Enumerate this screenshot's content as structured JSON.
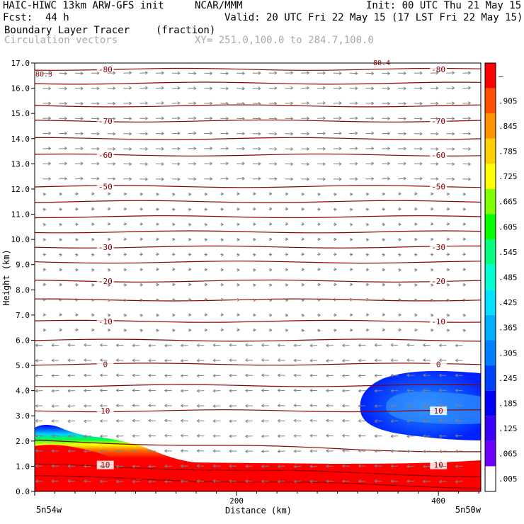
{
  "header": {
    "title_left": "HAIC-HIWC 13km ARW-GFS init",
    "title_org": "NCAR/MMM",
    "init": "Init: 00 UTC Thu 21 May 15",
    "fcst_label": "Fcst:",
    "fcst_value": "44 h",
    "valid": "Valid: 20 UTC Fri 22 May 15 (17 LST Fri 22 May 15)",
    "field_name": "Boundary Layer Tracer",
    "field_units": "(fraction)",
    "vector_label": "Circulation vectors",
    "xy_label": "XY= 251.0,100.0 to 284.7,100.0"
  },
  "chart_data": {
    "type": "heatmap",
    "ylabel": "Height (km)",
    "xlabel": "Distance (km)",
    "xlim": [
      0,
      442
    ],
    "ylim": [
      0,
      17
    ],
    "x_ticks": [
      "0",
      "200",
      "400"
    ],
    "x_end_labels": [
      "5n54w",
      "5n50w"
    ],
    "y_ticks": [
      "0.0",
      "1.0",
      "2.0",
      "3.0",
      "4.0",
      "5.0",
      "6.0",
      "7.0",
      "8.0",
      "9.0",
      "10.0",
      "11.0",
      "12.0",
      "13.0",
      "14.0",
      "15.0",
      "16.0",
      "17.0"
    ],
    "colorbar_labels": [
      ".005",
      ".065",
      ".125",
      ".185",
      ".245",
      ".305",
      ".365",
      ".425",
      ".485",
      ".545",
      ".605",
      ".665",
      ".725",
      ".785",
      ".845",
      ".905",
      "–"
    ],
    "colorbar_colors": [
      "#ffffff",
      "#6e00ff",
      "#3a00ff",
      "#0000ff",
      "#0040ff",
      "#0080ff",
      "#00b0ff",
      "#00e0ff",
      "#00ffd0",
      "#00ff80",
      "#00ff00",
      "#80ff00",
      "#ffff00",
      "#ffd000",
      "#ff9000",
      "#ff5000",
      "#ff0000"
    ],
    "temperature_contours": [
      {
        "label": "-80",
        "height_km": 16.75
      },
      {
        "label": "-70",
        "height_km": 14.7
      },
      {
        "label": "-60",
        "height_km": 13.35
      },
      {
        "label": "-50",
        "height_km": 12.1
      },
      {
        "label": "-30",
        "height_km": 9.7
      },
      {
        "label": "-20",
        "height_km": 8.35
      },
      {
        "label": "-10",
        "height_km": 6.75
      },
      {
        "label": "0",
        "height_km": 5.05
      },
      {
        "label": "10",
        "height_km": 3.2
      },
      {
        "label": "10",
        "height_km": 1.05
      }
    ],
    "other_labels": [
      "80.3",
      "80.4"
    ],
    "tracer_regions": [
      {
        "name": "boundary-layer",
        "top_km_west": 2.5,
        "top_km_east": 1.2
      },
      {
        "name": "elevated-layer",
        "x_km_range": [
          320,
          442
        ],
        "z_km_range": [
          2.1,
          4.8
        ]
      }
    ],
    "contour_color": "#8b0000",
    "vector_color": "#808080",
    "grid": false
  }
}
